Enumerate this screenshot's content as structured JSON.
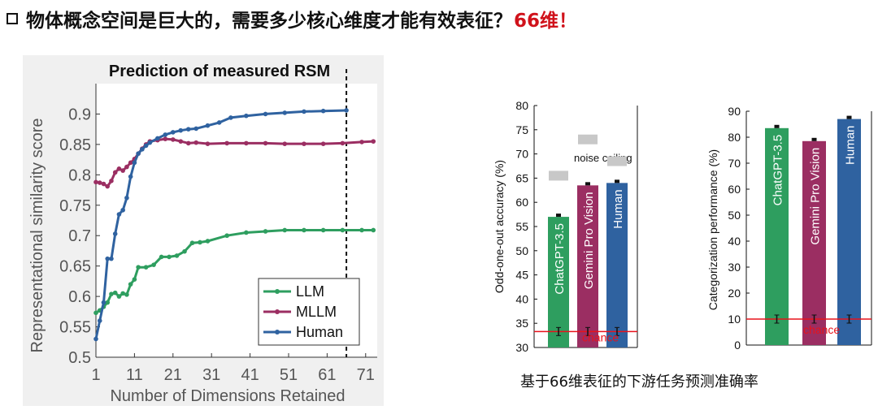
{
  "heading": {
    "text": "物体概念空间是巨大的，需要多少核心维度才能有效表征？",
    "highlight": "66维！",
    "highlight_color": "#d0121b"
  },
  "caption": "基于66维表征的下游任务预测准确率",
  "colors": {
    "llm": "#2e9e5f",
    "mllm": "#9b2e62",
    "human": "#2f62a0",
    "chance": "#e8121b",
    "noise": "#c8c8c8"
  },
  "chart_data": [
    {
      "type": "line",
      "title": "Prediction of measured RSM",
      "xlabel": "Number of Dimensions Retained",
      "ylabel": "Representational similarity score",
      "xlim": [
        1,
        74
      ],
      "ylim": [
        0.5,
        0.95
      ],
      "xticks": [
        1,
        11,
        21,
        31,
        41,
        51,
        61,
        71
      ],
      "yticks": [
        0.5,
        0.55,
        0.6,
        0.65,
        0.7,
        0.75,
        0.8,
        0.85,
        0.9
      ],
      "marker_line_x": 66,
      "legend": "bottom-right",
      "series": [
        {
          "name": "LLM",
          "x": [
            1,
            2,
            3,
            4,
            5,
            6,
            7,
            8,
            9,
            10,
            11,
            12,
            14,
            16,
            18,
            20,
            22,
            24,
            26,
            28,
            30,
            35,
            40,
            45,
            50,
            55,
            60,
            65,
            70,
            73
          ],
          "values": [
            0.573,
            0.577,
            0.583,
            0.59,
            0.604,
            0.606,
            0.6,
            0.605,
            0.603,
            0.62,
            0.628,
            0.648,
            0.648,
            0.652,
            0.665,
            0.665,
            0.667,
            0.674,
            0.688,
            0.689,
            0.691,
            0.7,
            0.705,
            0.707,
            0.709,
            0.709,
            0.709,
            0.709,
            0.709,
            0.709
          ]
        },
        {
          "name": "MLLM",
          "x": [
            1,
            2,
            3,
            4,
            5,
            6,
            7,
            8,
            9,
            10,
            11,
            12,
            13,
            14,
            15,
            17,
            19,
            21,
            23,
            25,
            27,
            30,
            35,
            40,
            45,
            50,
            55,
            60,
            65,
            70,
            73
          ],
          "values": [
            0.788,
            0.787,
            0.785,
            0.781,
            0.79,
            0.804,
            0.81,
            0.807,
            0.813,
            0.82,
            0.826,
            0.835,
            0.843,
            0.85,
            0.855,
            0.857,
            0.859,
            0.858,
            0.855,
            0.852,
            0.853,
            0.851,
            0.852,
            0.852,
            0.852,
            0.851,
            0.851,
            0.851,
            0.852,
            0.854,
            0.855
          ]
        },
        {
          "name": "Human",
          "x": [
            1,
            2,
            3,
            4,
            5,
            6,
            7,
            8,
            9,
            10,
            11,
            12,
            13,
            14,
            15,
            17,
            19,
            21,
            23,
            25,
            27,
            30,
            33,
            36,
            40,
            45,
            50,
            55,
            60,
            66
          ],
          "values": [
            0.53,
            0.56,
            0.59,
            0.662,
            0.662,
            0.703,
            0.735,
            0.742,
            0.762,
            0.797,
            0.82,
            0.835,
            0.842,
            0.848,
            0.853,
            0.86,
            0.866,
            0.87,
            0.873,
            0.875,
            0.876,
            0.881,
            0.886,
            0.894,
            0.897,
            0.9,
            0.902,
            0.904,
            0.905,
            0.906
          ]
        }
      ]
    },
    {
      "type": "bar",
      "title": "",
      "ylabel": "Odd-one-out accuracy (%)",
      "ylim": [
        30,
        80
      ],
      "yticks": [
        30,
        35,
        40,
        45,
        50,
        55,
        60,
        65,
        70,
        75,
        80
      ],
      "categories": [
        "ChatGPT-3.5",
        "Gemini Pro Vision",
        "Human"
      ],
      "values": [
        57,
        63.5,
        64
      ],
      "noise_ceiling": [
        65.5,
        73,
        68.5
      ],
      "noise_ceiling_label": "noise ceiling",
      "chance": 33.3,
      "chance_label": "chance"
    },
    {
      "type": "bar",
      "title": "",
      "ylabel": "Categorization performance (%)",
      "ylim": [
        0,
        90
      ],
      "yticks": [
        0,
        10,
        20,
        30,
        40,
        50,
        60,
        70,
        80,
        90
      ],
      "categories": [
        "ChatGPT-3.5",
        "Gemini Pro Vision",
        "Human"
      ],
      "values": [
        83.5,
        78.5,
        87
      ],
      "chance": 10,
      "chance_label": "chance"
    }
  ]
}
